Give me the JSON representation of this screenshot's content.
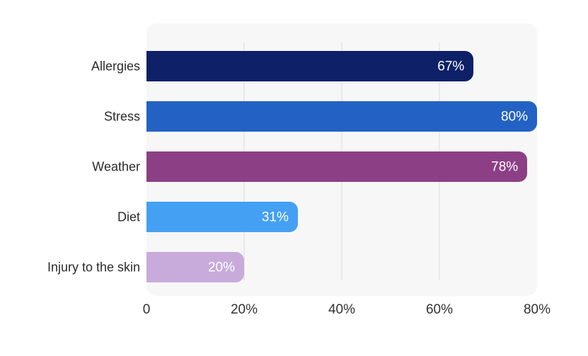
{
  "chart_data": {
    "type": "bar",
    "orientation": "horizontal",
    "title": "",
    "xlabel": "",
    "ylabel": "",
    "legend": "none",
    "grid": "vertical-lines-on",
    "categories": [
      "Allergies",
      "Stress",
      "Weather",
      "Diet",
      "Injury to the skin"
    ],
    "values": [
      67,
      80,
      78,
      31,
      20
    ],
    "value_labels": [
      "67%",
      "80%",
      "78%",
      "31%",
      "20%"
    ],
    "bar_colors": [
      "#0d2068",
      "#2362c4",
      "#8d3f85",
      "#44a0f2",
      "#c8abdb"
    ],
    "x_axis": {
      "min": 0,
      "max": 80,
      "tick_values": [
        0,
        20,
        40,
        60,
        80
      ],
      "tick_labels": [
        "0",
        "20%",
        "40%",
        "60%",
        "80%"
      ],
      "gridlines_at": [
        20,
        40,
        60
      ]
    },
    "colors": {
      "plot_background": "#f7f7f7",
      "gridline": "#e9e9e9",
      "category_label_text": "#2b2b2b",
      "axis_label_text": "#333333",
      "value_label_text": "#ffffff",
      "page_background": "#ffffff"
    }
  }
}
